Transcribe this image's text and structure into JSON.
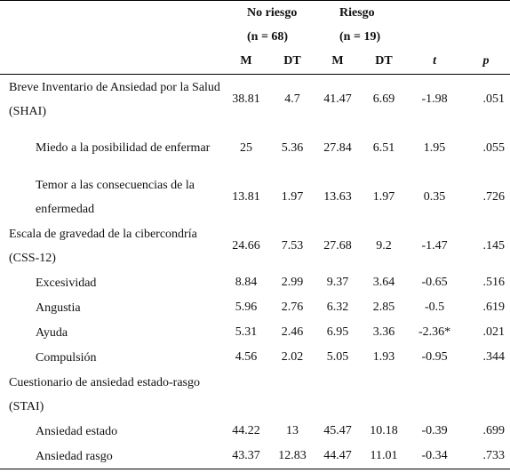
{
  "header": {
    "group1": "No riesgo",
    "group1_n": "(n = 68)",
    "group2": "Riesgo",
    "group2_n": "(n = 19)",
    "col_m1": "M",
    "col_dt1": "DT",
    "col_m2": "M",
    "col_dt2": "DT",
    "col_t": "t",
    "col_p": "p"
  },
  "rows": [
    {
      "label": "Breve Inventario de Ansiedad por la Salud (SHAI)",
      "m1": "38.81",
      "dt1": "4.7",
      "m2": "41.47",
      "dt2": "6.69",
      "t": "-1.98",
      "p": ".051"
    },
    {
      "label": "Miedo a la posibilidad de enfermar",
      "m1": "25",
      "dt1": "5.36",
      "m2": "27.84",
      "dt2": "6.51",
      "t": "1.95",
      "p": ".055"
    },
    {
      "label": "Temor a las consecuencias de la enfermedad",
      "m1": "13.81",
      "dt1": "1.97",
      "m2": "13.63",
      "dt2": "1.97",
      "t": "0.35",
      "p": ".726"
    },
    {
      "label": "Escala de gravedad de la cibercondría (CSS-12)",
      "m1": "24.66",
      "dt1": "7.53",
      "m2": "27.68",
      "dt2": "9.2",
      "t": "-1.47",
      "p": ".145"
    },
    {
      "label": "Excesividad",
      "m1": "8.84",
      "dt1": "2.99",
      "m2": "9.37",
      "dt2": "3.64",
      "t": "-0.65",
      "p": ".516"
    },
    {
      "label": "Angustia",
      "m1": "5.96",
      "dt1": "2.76",
      "m2": "6.32",
      "dt2": "2.85",
      "t": "-0.5",
      "p": ".619"
    },
    {
      "label": "Ayuda",
      "m1": "5.31",
      "dt1": "2.46",
      "m2": "6.95",
      "dt2": "3.36",
      "t": "-2.36*",
      "p": ".021"
    },
    {
      "label": "Compulsión",
      "m1": "4.56",
      "dt1": "2.02",
      "m2": "5.05",
      "dt2": "1.93",
      "t": "-0.95",
      "p": ".344"
    },
    {
      "label": "Cuestionario de ansiedad estado-rasgo (STAI)"
    },
    {
      "label": "Ansiedad estado",
      "m1": "44.22",
      "dt1": "13",
      "m2": "45.47",
      "dt2": "10.18",
      "t": "-0.39",
      "p": ".699"
    },
    {
      "label": "Ansiedad rasgo",
      "m1": "43.37",
      "dt1": "12.83",
      "m2": "44.47",
      "dt2": "11.01",
      "t": "-0.34",
      "p": ".733"
    }
  ]
}
